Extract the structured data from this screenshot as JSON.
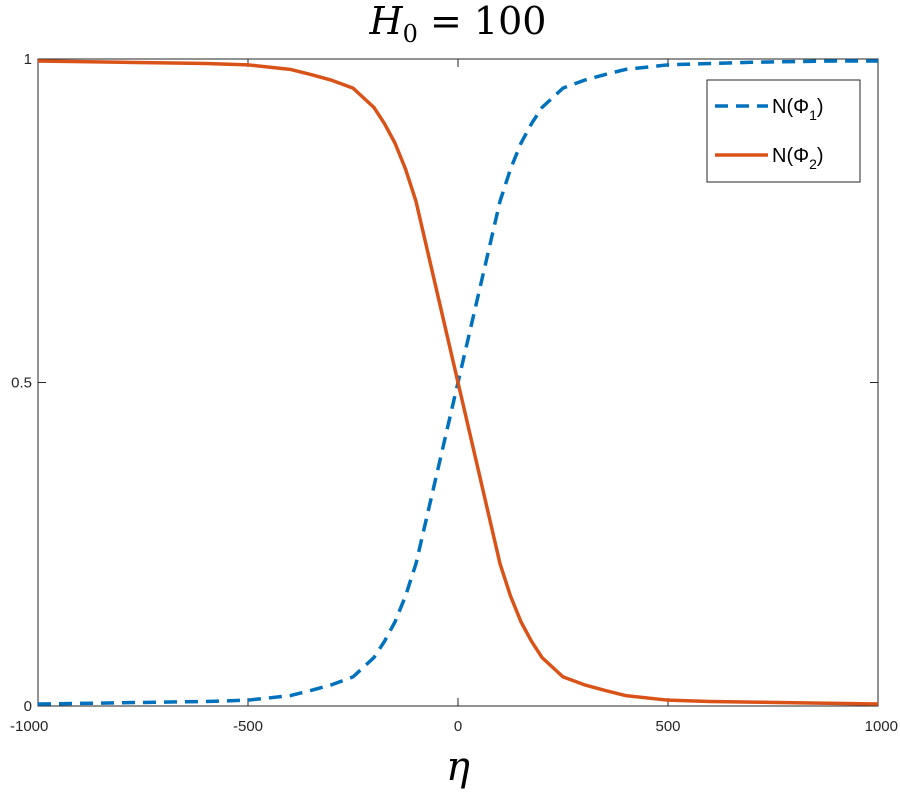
{
  "chart_data": {
    "type": "line",
    "title": "H0 = 100",
    "title_main": "H",
    "title_sub": "0",
    "title_rest": " = 100",
    "xlabel": "η",
    "ylabel": "",
    "xlim": [
      -1000,
      1000
    ],
    "ylim": [
      0,
      1
    ],
    "xticks": [
      -1000,
      -500,
      0,
      500,
      1000
    ],
    "xtick_labels": [
      "-1000",
      "-500",
      "0",
      "500",
      "1000"
    ],
    "yticks": [
      0,
      0.5,
      1
    ],
    "ytick_labels": [
      "0",
      "0.5",
      "1"
    ],
    "grid": false,
    "legend_position": "top-right",
    "x": [
      -1000,
      -900,
      -800,
      -700,
      -600,
      -500,
      -400,
      -350,
      -300,
      -250,
      -200,
      -175,
      -150,
      -125,
      -100,
      -75,
      -50,
      -25,
      0,
      25,
      50,
      75,
      100,
      125,
      150,
      175,
      200,
      250,
      300,
      350,
      400,
      500,
      600,
      700,
      800,
      900,
      1000
    ],
    "series": [
      {
        "name": "N(Φ1)",
        "label_main": "N(Φ",
        "label_sub": "1",
        "label_end": ")",
        "color": "#0072BD",
        "style": "dashed",
        "values": [
          0.003,
          0.004,
          0.005,
          0.006,
          0.007,
          0.009,
          0.016,
          0.024,
          0.033,
          0.045,
          0.075,
          0.1,
          0.13,
          0.17,
          0.22,
          0.29,
          0.36,
          0.43,
          0.5,
          0.57,
          0.64,
          0.71,
          0.78,
          0.83,
          0.87,
          0.9,
          0.925,
          0.955,
          0.967,
          0.976,
          0.984,
          0.991,
          0.993,
          0.995,
          0.996,
          0.997,
          0.997
        ]
      },
      {
        "name": "N(Φ2)",
        "label_main": "N(Φ",
        "label_sub": "2",
        "label_end": ")",
        "color": "#D95319",
        "style": "solid",
        "values": [
          0.997,
          0.996,
          0.995,
          0.994,
          0.993,
          0.991,
          0.984,
          0.976,
          0.967,
          0.955,
          0.925,
          0.9,
          0.87,
          0.83,
          0.78,
          0.71,
          0.64,
          0.57,
          0.5,
          0.43,
          0.36,
          0.29,
          0.22,
          0.17,
          0.13,
          0.1,
          0.075,
          0.045,
          0.033,
          0.024,
          0.016,
          0.009,
          0.007,
          0.006,
          0.005,
          0.004,
          0.003
        ]
      }
    ]
  }
}
